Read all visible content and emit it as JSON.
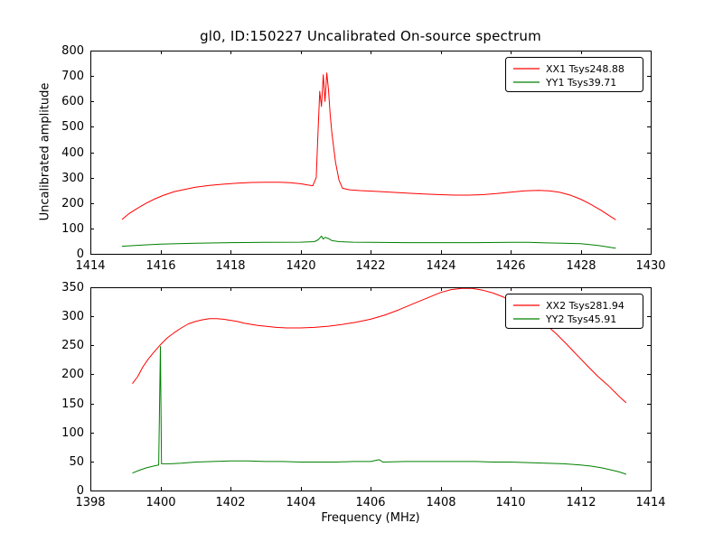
{
  "figure": {
    "title": "gl0, ID:150227 Uncalibrated On-source spectrum",
    "ylabel": "Uncalibrated amplitude",
    "xlabel": "Frequency (MHz)"
  },
  "chart_data": [
    {
      "type": "line",
      "title": "gl0, ID:150227 Uncalibrated On-source spectrum",
      "xlabel": "",
      "ylabel": "Uncalibrated amplitude",
      "xlim": [
        1414,
        1430
      ],
      "ylim": [
        0,
        800
      ],
      "xticks": [
        1414,
        1416,
        1418,
        1420,
        1422,
        1424,
        1426,
        1428,
        1430
      ],
      "yticks": [
        0,
        100,
        200,
        300,
        400,
        500,
        600,
        700,
        800
      ],
      "grid": false,
      "legend_position": "upper right",
      "series": [
        {
          "name": "XX1 Tsys248.88",
          "color": "#ff0000",
          "points": [
            [
              1414.9,
              135
            ],
            [
              1415.1,
              158
            ],
            [
              1415.35,
              180
            ],
            [
              1415.6,
              200
            ],
            [
              1415.85,
              217
            ],
            [
              1416.1,
              231
            ],
            [
              1416.4,
              245
            ],
            [
              1416.7,
              254
            ],
            [
              1417.0,
              262
            ],
            [
              1417.4,
              269
            ],
            [
              1417.8,
              274
            ],
            [
              1418.2,
              278
            ],
            [
              1418.6,
              281
            ],
            [
              1419.0,
              282
            ],
            [
              1419.4,
              282
            ],
            [
              1419.7,
              280
            ],
            [
              1420.0,
              276
            ],
            [
              1420.2,
              271
            ],
            [
              1420.35,
              268
            ],
            [
              1420.45,
              300
            ],
            [
              1420.5,
              480
            ],
            [
              1420.55,
              640
            ],
            [
              1420.6,
              580
            ],
            [
              1420.65,
              705
            ],
            [
              1420.7,
              600
            ],
            [
              1420.75,
              712
            ],
            [
              1420.8,
              645
            ],
            [
              1420.85,
              545
            ],
            [
              1420.9,
              470
            ],
            [
              1421.0,
              360
            ],
            [
              1421.1,
              290
            ],
            [
              1421.2,
              258
            ],
            [
              1421.4,
              252
            ],
            [
              1421.7,
              249
            ],
            [
              1422.0,
              247
            ],
            [
              1422.4,
              244
            ],
            [
              1422.8,
              241
            ],
            [
              1423.2,
              238
            ],
            [
              1423.6,
              235
            ],
            [
              1424.0,
              233
            ],
            [
              1424.4,
              231
            ],
            [
              1424.8,
              231
            ],
            [
              1425.2,
              233
            ],
            [
              1425.6,
              237
            ],
            [
              1426.0,
              243
            ],
            [
              1426.4,
              248
            ],
            [
              1426.8,
              250
            ],
            [
              1427.1,
              248
            ],
            [
              1427.4,
              242
            ],
            [
              1427.7,
              231
            ],
            [
              1428.0,
              215
            ],
            [
              1428.3,
              194
            ],
            [
              1428.6,
              170
            ],
            [
              1428.8,
              152
            ],
            [
              1429.0,
              134
            ]
          ]
        },
        {
          "name": "YY1 Tsys39.71",
          "color": "#008000",
          "points": [
            [
              1414.9,
              30
            ],
            [
              1415.5,
              35
            ],
            [
              1416.0,
              38
            ],
            [
              1417.0,
              42
            ],
            [
              1418.0,
              44
            ],
            [
              1419.0,
              45
            ],
            [
              1420.0,
              46
            ],
            [
              1420.4,
              48
            ],
            [
              1420.5,
              55
            ],
            [
              1420.55,
              62
            ],
            [
              1420.6,
              70
            ],
            [
              1420.65,
              58
            ],
            [
              1420.7,
              65
            ],
            [
              1420.8,
              60
            ],
            [
              1420.9,
              52
            ],
            [
              1421.1,
              48
            ],
            [
              1421.5,
              46
            ],
            [
              1422.0,
              45
            ],
            [
              1423.0,
              44
            ],
            [
              1424.0,
              44
            ],
            [
              1425.0,
              44
            ],
            [
              1426.0,
              45
            ],
            [
              1426.5,
              45
            ],
            [
              1427.0,
              43
            ],
            [
              1427.5,
              42
            ],
            [
              1428.0,
              40
            ],
            [
              1428.5,
              33
            ],
            [
              1429.0,
              22
            ]
          ]
        }
      ]
    },
    {
      "type": "line",
      "title": "",
      "xlabel": "Frequency (MHz)",
      "ylabel": "",
      "xlim": [
        1398,
        1414
      ],
      "ylim": [
        0,
        350
      ],
      "xticks": [
        1398,
        1400,
        1402,
        1404,
        1406,
        1408,
        1410,
        1412,
        1414
      ],
      "yticks": [
        0,
        50,
        100,
        150,
        200,
        250,
        300,
        350
      ],
      "grid": false,
      "legend_position": "upper right",
      "series": [
        {
          "name": "XX2 Tsys281.94",
          "color": "#ff0000",
          "points": [
            [
              1399.2,
              184
            ],
            [
              1399.35,
              196
            ],
            [
              1399.5,
              213
            ],
            [
              1399.65,
              226
            ],
            [
              1399.8,
              237
            ],
            [
              1400.0,
              251
            ],
            [
              1400.2,
              263
            ],
            [
              1400.4,
              272
            ],
            [
              1400.6,
              280
            ],
            [
              1400.8,
              287
            ],
            [
              1401.0,
              291
            ],
            [
              1401.2,
              294
            ],
            [
              1401.4,
              296
            ],
            [
              1401.6,
              296
            ],
            [
              1401.8,
              295
            ],
            [
              1402.0,
              293
            ],
            [
              1402.2,
              291
            ],
            [
              1402.4,
              288
            ],
            [
              1402.6,
              286
            ],
            [
              1402.8,
              284
            ],
            [
              1403.0,
              283
            ],
            [
              1403.3,
              281
            ],
            [
              1403.6,
              280
            ],
            [
              1404.0,
              280
            ],
            [
              1404.4,
              281
            ],
            [
              1404.8,
              283
            ],
            [
              1405.2,
              286
            ],
            [
              1405.6,
              290
            ],
            [
              1406.0,
              295
            ],
            [
              1406.4,
              302
            ],
            [
              1406.8,
              311
            ],
            [
              1407.2,
              321
            ],
            [
              1407.6,
              331
            ],
            [
              1408.0,
              341
            ],
            [
              1408.3,
              346
            ],
            [
              1408.6,
              348
            ],
            [
              1408.9,
              348
            ],
            [
              1409.2,
              345
            ],
            [
              1409.5,
              340
            ],
            [
              1409.8,
              333
            ],
            [
              1410.1,
              324
            ],
            [
              1410.4,
              313
            ],
            [
              1410.7,
              300
            ],
            [
              1411.0,
              286
            ],
            [
              1411.3,
              270
            ],
            [
              1411.6,
              252
            ],
            [
              1411.9,
              233
            ],
            [
              1412.2,
              214
            ],
            [
              1412.5,
              196
            ],
            [
              1412.8,
              180
            ],
            [
              1413.0,
              168
            ],
            [
              1413.15,
              159
            ],
            [
              1413.3,
              151
            ]
          ]
        },
        {
          "name": "YY2 Tsys45.91",
          "color": "#008000",
          "points": [
            [
              1399.2,
              30
            ],
            [
              1399.4,
              35
            ],
            [
              1399.6,
              39
            ],
            [
              1399.8,
              42
            ],
            [
              1399.95,
              44
            ],
            [
              1400.0,
              248
            ],
            [
              1400.03,
              46
            ],
            [
              1400.3,
              46
            ],
            [
              1400.6,
              47
            ],
            [
              1401.0,
              49
            ],
            [
              1401.5,
              50
            ],
            [
              1402.0,
              51
            ],
            [
              1402.5,
              51
            ],
            [
              1403.0,
              50
            ],
            [
              1403.5,
              50
            ],
            [
              1404.0,
              49
            ],
            [
              1404.5,
              49
            ],
            [
              1405.0,
              49
            ],
            [
              1405.5,
              50
            ],
            [
              1406.0,
              50
            ],
            [
              1406.25,
              53
            ],
            [
              1406.35,
              49
            ],
            [
              1407.0,
              50
            ],
            [
              1407.5,
              50
            ],
            [
              1408.0,
              50
            ],
            [
              1408.5,
              50
            ],
            [
              1409.0,
              50
            ],
            [
              1409.5,
              49
            ],
            [
              1410.0,
              49
            ],
            [
              1410.5,
              48
            ],
            [
              1411.0,
              47
            ],
            [
              1411.5,
              46
            ],
            [
              1412.0,
              44
            ],
            [
              1412.3,
              42
            ],
            [
              1412.6,
              39
            ],
            [
              1412.9,
              35
            ],
            [
              1413.1,
              32
            ],
            [
              1413.3,
              28
            ]
          ]
        }
      ]
    }
  ]
}
